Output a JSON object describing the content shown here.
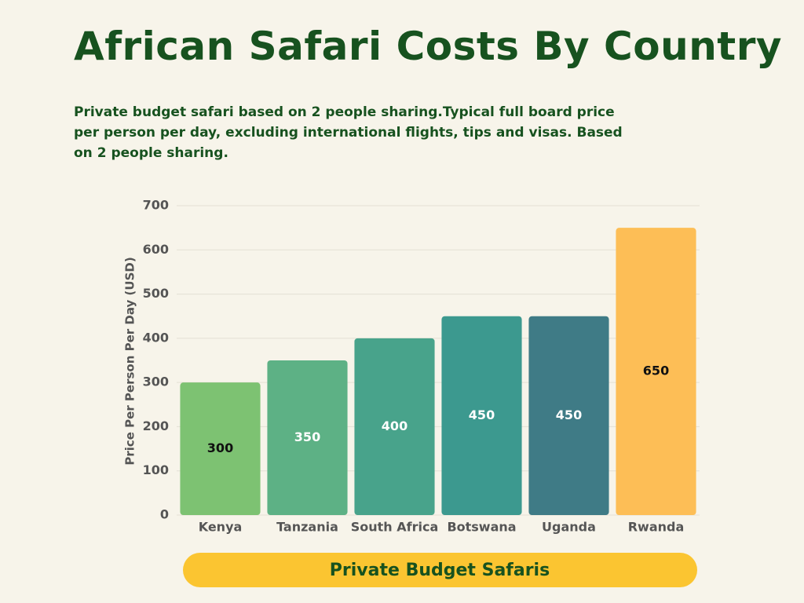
{
  "chart_data": {
    "type": "bar",
    "title": "African Safari Costs By Country",
    "subtitle": "Private budget safari based on 2 people sharing.Typical full board price per person per day, excluding international flights, tips and visas. Based on 2 people sharing.",
    "y_label": "Price Per Person Per Day (USD)",
    "x_label": "Private Budget Safaris",
    "categories": [
      "Kenya",
      "Tanzania",
      "South Africa",
      "Botswana",
      "Uganda",
      "Rwanda"
    ],
    "values": [
      300,
      350,
      400,
      450,
      450,
      650
    ],
    "colors": [
      "#7dc272",
      "#5db185",
      "#48a38b",
      "#3c998f",
      "#3f7b86",
      "#fdbe56"
    ],
    "label_colors": [
      "#111111",
      "#ffffff",
      "#ffffff",
      "#ffffff",
      "#ffffff",
      "#111111"
    ],
    "ylim": [
      0,
      700
    ],
    "yticks": [
      0,
      100,
      200,
      300,
      400,
      500,
      600,
      700
    ],
    "grid": true
  }
}
